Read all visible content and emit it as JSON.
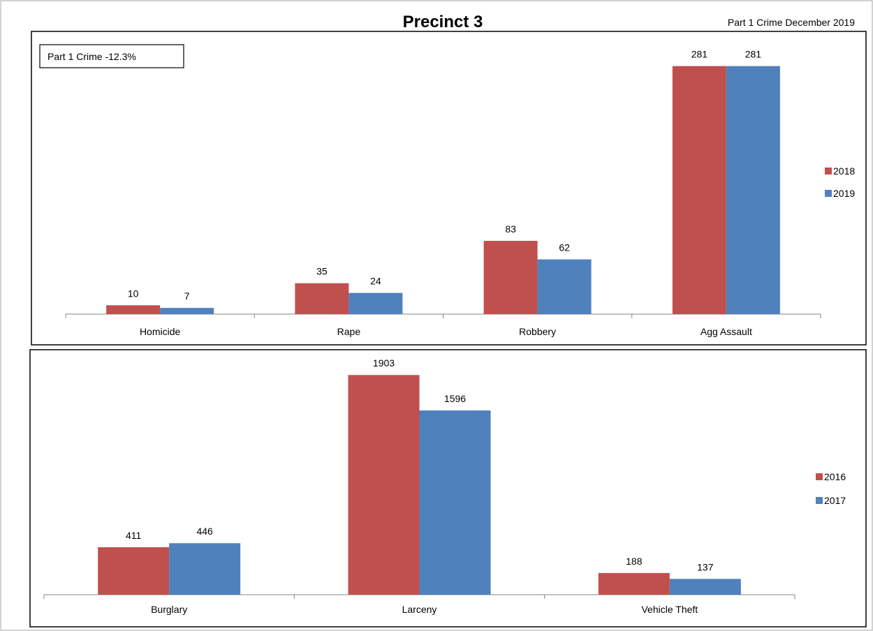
{
  "header": {
    "title": "Precinct 3",
    "subtitle": "Part 1 Crime December 2019"
  },
  "annotation": "Part 1 Crime -12.3%",
  "chart_data": [
    {
      "type": "bar",
      "categories": [
        "Homicide",
        "Rape",
        "Robbery",
        "Agg Assault"
      ],
      "series": [
        {
          "name": "2018",
          "values": [
            10,
            35,
            83,
            281
          ],
          "color": "#c0504d"
        },
        {
          "name": "2019",
          "values": [
            7,
            24,
            62,
            281
          ],
          "color": "#4f81bd"
        }
      ],
      "ylim": [
        0,
        310
      ],
      "grid": false,
      "legend": "right",
      "data_labels": true
    },
    {
      "type": "bar",
      "categories": [
        "Burglary",
        "Larceny",
        "Vehicle Theft"
      ],
      "series": [
        {
          "name": "2016",
          "values": [
            411,
            1903,
            188
          ],
          "color": "#c0504d"
        },
        {
          "name": "2017",
          "values": [
            446,
            1596,
            137
          ],
          "color": "#4f81bd"
        }
      ],
      "ylim": [
        0,
        2110
      ],
      "grid": false,
      "legend": "right",
      "data_labels": true
    }
  ]
}
